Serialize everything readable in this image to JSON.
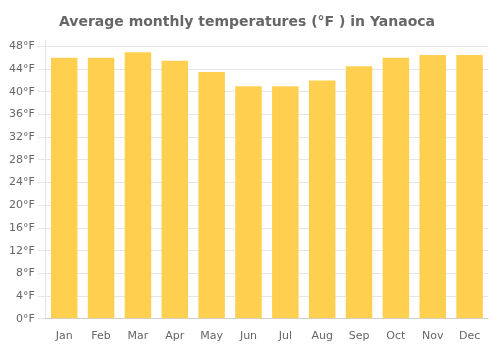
{
  "chart_data": {
    "type": "bar",
    "title": "Average monthly temperatures (°F ) in Yanaoca",
    "categories": [
      "Jan",
      "Feb",
      "Mar",
      "Apr",
      "May",
      "Jun",
      "Jul",
      "Aug",
      "Sep",
      "Oct",
      "Nov",
      "Dec"
    ],
    "values": [
      46.0,
      46.0,
      47.0,
      45.5,
      43.5,
      41.0,
      41.0,
      42.0,
      44.5,
      46.0,
      46.5,
      46.5
    ],
    "color": "#FFD050",
    "ylim": [
      0,
      49
    ],
    "yticks": [
      {
        "value": 0,
        "label": "0°F"
      },
      {
        "value": 4,
        "label": "4°F"
      },
      {
        "value": 8,
        "label": "8°F"
      },
      {
        "value": 12,
        "label": "12°F"
      },
      {
        "value": 16,
        "label": "16°F"
      },
      {
        "value": 20,
        "label": "20°F"
      },
      {
        "value": 24,
        "label": "24°F"
      },
      {
        "value": 28,
        "label": "28°F"
      },
      {
        "value": 32,
        "label": "32°F"
      },
      {
        "value": 36,
        "label": "36°F"
      },
      {
        "value": 40,
        "label": "40°F"
      },
      {
        "value": 44,
        "label": "44°F"
      },
      {
        "value": 48,
        "label": "48°F"
      }
    ],
    "grid": true
  }
}
